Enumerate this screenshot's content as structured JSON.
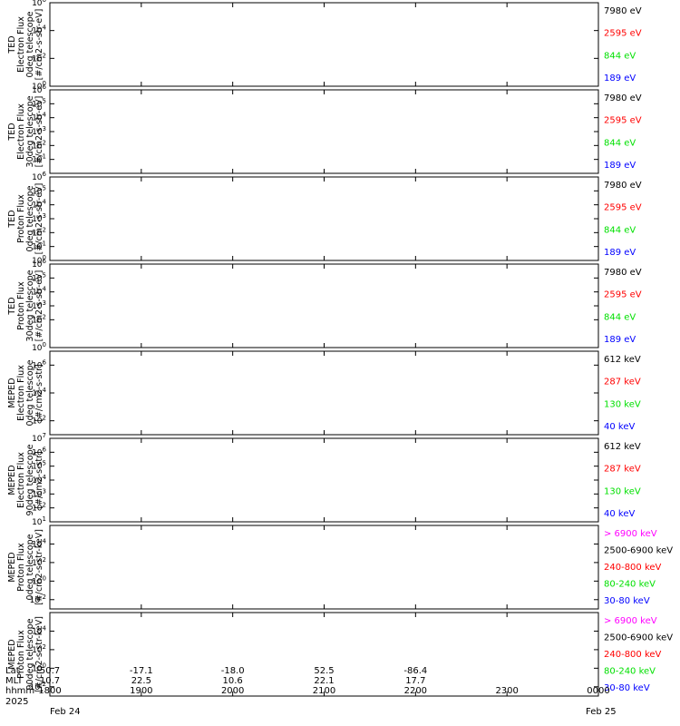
{
  "colors": {
    "blue": "#0000ff",
    "red": "#ff0000",
    "green": "#00e000",
    "black": "#000000",
    "magenta": "#ff00ff"
  },
  "chart_data": [
    {
      "type": "line",
      "ylabel": [
        "TED",
        "Electron Flux",
        "0deg telescope",
        "[#/cm2-s-str-eV]"
      ],
      "y_log": true,
      "ylim_exp": [
        0,
        6
      ],
      "y_ticks_exp": [
        0,
        2,
        4,
        6
      ],
      "series": [
        {
          "name": "7980 eV",
          "color": "#000000"
        },
        {
          "name": "2595 eV",
          "color": "#ff0000"
        },
        {
          "name": "844 eV",
          "color": "#00e000"
        },
        {
          "name": "189 eV",
          "color": "#0000ff"
        }
      ]
    },
    {
      "type": "line",
      "ylabel": [
        "TED",
        "Electron Flux",
        "30deg telescope",
        "[#/cm2-s-str-eV]"
      ],
      "y_log": true,
      "ylim_exp": [
        0,
        6
      ],
      "y_ticks_exp": [
        1,
        2,
        3,
        4,
        5,
        6
      ],
      "series": [
        {
          "name": "7980 eV",
          "color": "#000000"
        },
        {
          "name": "2595 eV",
          "color": "#ff0000"
        },
        {
          "name": "844 eV",
          "color": "#00e000"
        },
        {
          "name": "189 eV",
          "color": "#0000ff"
        }
      ]
    },
    {
      "type": "line",
      "ylabel": [
        "TED",
        "Proton Flux",
        "0deg telescope",
        "[#/cm2-s-str-eV]"
      ],
      "y_log": true,
      "ylim_exp": [
        0,
        6
      ],
      "y_ticks_exp": [
        0,
        1,
        2,
        3,
        4,
        5,
        6
      ],
      "series": [
        {
          "name": "7980 eV",
          "color": "#000000"
        },
        {
          "name": "2595 eV",
          "color": "#ff0000"
        },
        {
          "name": "844 eV",
          "color": "#00e000"
        },
        {
          "name": "189 eV",
          "color": "#0000ff"
        }
      ]
    },
    {
      "type": "line",
      "ylabel": [
        "TED",
        "Proton Flux",
        "30deg telescope",
        "[#/cm2-s-str-eV]"
      ],
      "y_log": true,
      "ylim_exp": [
        0,
        6
      ],
      "y_ticks_exp": [
        0,
        2,
        3,
        4,
        5,
        6
      ],
      "series": [
        {
          "name": "7980 eV",
          "color": "#000000"
        },
        {
          "name": "2595 eV",
          "color": "#ff0000"
        },
        {
          "name": "844 eV",
          "color": "#00e000"
        },
        {
          "name": "189 eV",
          "color": "#0000ff"
        }
      ]
    },
    {
      "type": "line",
      "ylabel": [
        "MEPED",
        "Electron Flux",
        "0deg telescope",
        "[#/cm2-s-str]"
      ],
      "y_log": true,
      "ylim_exp": [
        1,
        7
      ],
      "y_ticks_exp": [
        2,
        4,
        6
      ],
      "series": [
        {
          "name": "612 keV",
          "color": "#000000"
        },
        {
          "name": "287 keV",
          "color": "#ff0000"
        },
        {
          "name": "130 keV",
          "color": "#00e000"
        },
        {
          "name": "40 keV",
          "color": "#0000ff"
        }
      ]
    },
    {
      "type": "line",
      "ylabel": [
        "MEPED",
        "Electron Flux",
        "90deg telescope",
        "[#/cm2-s-str]"
      ],
      "y_log": true,
      "ylim_exp": [
        1,
        7
      ],
      "y_ticks_exp": [
        1,
        2,
        3,
        4,
        5,
        6,
        7
      ],
      "series": [
        {
          "name": "612 keV",
          "color": "#000000"
        },
        {
          "name": "287 keV",
          "color": "#ff0000"
        },
        {
          "name": "130 keV",
          "color": "#00e000"
        },
        {
          "name": "40 keV",
          "color": "#0000ff"
        }
      ]
    },
    {
      "type": "line",
      "ylabel": [
        "MEPED",
        "Proton Flux",
        "0deg telescope",
        "[#/cm2-s-str-keV]"
      ],
      "y_log": true,
      "ylim_exp": [
        -3,
        6
      ],
      "y_ticks_exp": [
        -2,
        0,
        2,
        4
      ],
      "series": [
        {
          "name": "> 6900 keV",
          "color": "#ff00ff"
        },
        {
          "name": "2500-6900 keV",
          "color": "#000000"
        },
        {
          "name": "240-800 keV",
          "color": "#ff0000"
        },
        {
          "name": "80-240 keV",
          "color": "#00e000"
        },
        {
          "name": "30-80 keV",
          "color": "#0000ff"
        }
      ]
    },
    {
      "type": "line",
      "ylabel": [
        "MEPED",
        "Proton Flux",
        "90deg telescope",
        "[#/cm2-s-str-keV]"
      ],
      "y_log": true,
      "ylim_exp": [
        -3,
        6
      ],
      "y_ticks_exp": [
        -2,
        0,
        2,
        4
      ],
      "series": [
        {
          "name": "> 6900 keV",
          "color": "#ff00ff"
        },
        {
          "name": "2500-6900 keV",
          "color": "#000000"
        },
        {
          "name": "240-800 keV",
          "color": "#ff0000"
        },
        {
          "name": "80-240 keV",
          "color": "#00e000"
        },
        {
          "name": "30-80 keV",
          "color": "#0000ff"
        }
      ]
    }
  ],
  "x_axis": {
    "labels": [
      "Lat",
      "MLT",
      "hhmm",
      "2025"
    ],
    "rows": [
      {
        "x": [
          "1800",
          "1900",
          "2000",
          "2100",
          "2200",
          "2300",
          "0000"
        ],
        "lat": [
          "50.7",
          "-17.1",
          "-18.0",
          "52.5",
          "-86.4",
          "",
          ""
        ],
        "mlt": [
          "10.7",
          "22.5",
          "10.6",
          "22.1",
          "17.7",
          "",
          ""
        ]
      }
    ],
    "date_start": "Feb 24",
    "date_end": "Feb 25",
    "time_range_hhmm": [
      "1800",
      "0000"
    ]
  }
}
